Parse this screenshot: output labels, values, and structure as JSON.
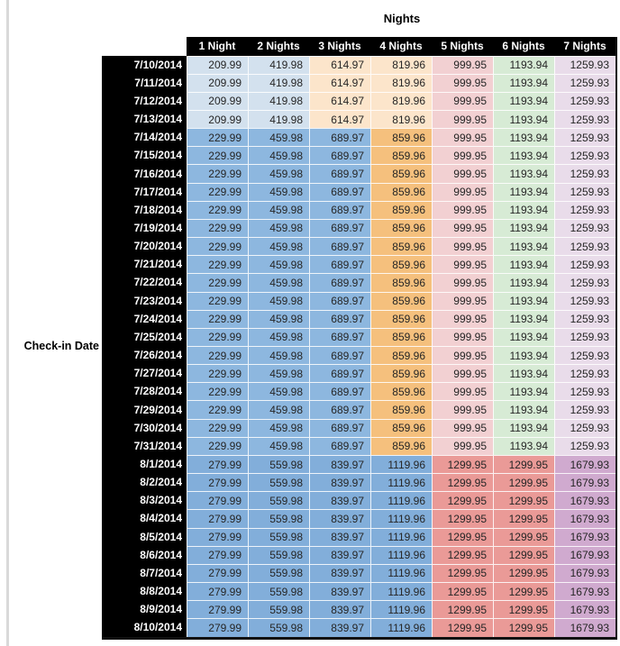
{
  "palette": {
    "low": [
      "#d3e1ee",
      "#d3e1ee",
      "#fce5cb",
      "#fce5cb",
      "#f2d0d2",
      "#d7ebd5",
      "#e9dcea"
    ],
    "mid": [
      "#8db7df",
      "#8db7df",
      "#8db7df",
      "#f5c07d",
      "#f2d0d2",
      "#d7ebd5",
      "#e9dcea"
    ],
    "high": [
      "#82aeda",
      "#82aeda",
      "#82aeda",
      "#82aeda",
      "#ea9a97",
      "#ea9a97",
      "#d0aacf"
    ]
  },
  "styles": {
    "header_bg": "#000000",
    "header_text": "#ffffff",
    "value_text": "#262626",
    "gridline": "#ffffff",
    "side_rule": "#d9d9d9"
  },
  "chart_data": {
    "type": "heatmap",
    "title": "Nights",
    "row_label": "Check-in Date",
    "legend_position": "none",
    "columns": [
      "1 Night",
      "2 Nights",
      "3 Nights",
      "4 Nights",
      "5 Nights",
      "6 Nights",
      "7 Nights"
    ],
    "rows": [
      {
        "date": "7/10/2014",
        "tier": "low",
        "values": [
          "209.99",
          "419.98",
          "614.97",
          "819.96",
          "999.95",
          "1193.94",
          "1259.93"
        ]
      },
      {
        "date": "7/11/2014",
        "tier": "low",
        "values": [
          "209.99",
          "419.98",
          "614.97",
          "819.96",
          "999.95",
          "1193.94",
          "1259.93"
        ]
      },
      {
        "date": "7/12/2014",
        "tier": "low",
        "values": [
          "209.99",
          "419.98",
          "614.97",
          "819.96",
          "999.95",
          "1193.94",
          "1259.93"
        ]
      },
      {
        "date": "7/13/2014",
        "tier": "low",
        "values": [
          "209.99",
          "419.98",
          "614.97",
          "819.96",
          "999.95",
          "1193.94",
          "1259.93"
        ]
      },
      {
        "date": "7/14/2014",
        "tier": "mid",
        "values": [
          "229.99",
          "459.98",
          "689.97",
          "859.96",
          "999.95",
          "1193.94",
          "1259.93"
        ]
      },
      {
        "date": "7/15/2014",
        "tier": "mid",
        "values": [
          "229.99",
          "459.98",
          "689.97",
          "859.96",
          "999.95",
          "1193.94",
          "1259.93"
        ]
      },
      {
        "date": "7/16/2014",
        "tier": "mid",
        "values": [
          "229.99",
          "459.98",
          "689.97",
          "859.96",
          "999.95",
          "1193.94",
          "1259.93"
        ]
      },
      {
        "date": "7/17/2014",
        "tier": "mid",
        "values": [
          "229.99",
          "459.98",
          "689.97",
          "859.96",
          "999.95",
          "1193.94",
          "1259.93"
        ]
      },
      {
        "date": "7/18/2014",
        "tier": "mid",
        "values": [
          "229.99",
          "459.98",
          "689.97",
          "859.96",
          "999.95",
          "1193.94",
          "1259.93"
        ]
      },
      {
        "date": "7/19/2014",
        "tier": "mid",
        "values": [
          "229.99",
          "459.98",
          "689.97",
          "859.96",
          "999.95",
          "1193.94",
          "1259.93"
        ]
      },
      {
        "date": "7/20/2014",
        "tier": "mid",
        "values": [
          "229.99",
          "459.98",
          "689.97",
          "859.96",
          "999.95",
          "1193.94",
          "1259.93"
        ]
      },
      {
        "date": "7/21/2014",
        "tier": "mid",
        "values": [
          "229.99",
          "459.98",
          "689.97",
          "859.96",
          "999.95",
          "1193.94",
          "1259.93"
        ]
      },
      {
        "date": "7/22/2014",
        "tier": "mid",
        "values": [
          "229.99",
          "459.98",
          "689.97",
          "859.96",
          "999.95",
          "1193.94",
          "1259.93"
        ]
      },
      {
        "date": "7/23/2014",
        "tier": "mid",
        "values": [
          "229.99",
          "459.98",
          "689.97",
          "859.96",
          "999.95",
          "1193.94",
          "1259.93"
        ]
      },
      {
        "date": "7/24/2014",
        "tier": "mid",
        "values": [
          "229.99",
          "459.98",
          "689.97",
          "859.96",
          "999.95",
          "1193.94",
          "1259.93"
        ]
      },
      {
        "date": "7/25/2014",
        "tier": "mid",
        "values": [
          "229.99",
          "459.98",
          "689.97",
          "859.96",
          "999.95",
          "1193.94",
          "1259.93"
        ]
      },
      {
        "date": "7/26/2014",
        "tier": "mid",
        "values": [
          "229.99",
          "459.98",
          "689.97",
          "859.96",
          "999.95",
          "1193.94",
          "1259.93"
        ]
      },
      {
        "date": "7/27/2014",
        "tier": "mid",
        "values": [
          "229.99",
          "459.98",
          "689.97",
          "859.96",
          "999.95",
          "1193.94",
          "1259.93"
        ]
      },
      {
        "date": "7/28/2014",
        "tier": "mid",
        "values": [
          "229.99",
          "459.98",
          "689.97",
          "859.96",
          "999.95",
          "1193.94",
          "1259.93"
        ]
      },
      {
        "date": "7/29/2014",
        "tier": "mid",
        "values": [
          "229.99",
          "459.98",
          "689.97",
          "859.96",
          "999.95",
          "1193.94",
          "1259.93"
        ]
      },
      {
        "date": "7/30/2014",
        "tier": "mid",
        "values": [
          "229.99",
          "459.98",
          "689.97",
          "859.96",
          "999.95",
          "1193.94",
          "1259.93"
        ]
      },
      {
        "date": "7/31/2014",
        "tier": "mid",
        "values": [
          "229.99",
          "459.98",
          "689.97",
          "859.96",
          "999.95",
          "1193.94",
          "1259.93"
        ]
      },
      {
        "date": "8/1/2014",
        "tier": "high",
        "values": [
          "279.99",
          "559.98",
          "839.97",
          "1119.96",
          "1299.95",
          "1299.95",
          "1679.93"
        ]
      },
      {
        "date": "8/2/2014",
        "tier": "high",
        "values": [
          "279.99",
          "559.98",
          "839.97",
          "1119.96",
          "1299.95",
          "1299.95",
          "1679.93"
        ]
      },
      {
        "date": "8/3/2014",
        "tier": "high",
        "values": [
          "279.99",
          "559.98",
          "839.97",
          "1119.96",
          "1299.95",
          "1299.95",
          "1679.93"
        ]
      },
      {
        "date": "8/4/2014",
        "tier": "high",
        "values": [
          "279.99",
          "559.98",
          "839.97",
          "1119.96",
          "1299.95",
          "1299.95",
          "1679.93"
        ]
      },
      {
        "date": "8/5/2014",
        "tier": "high",
        "values": [
          "279.99",
          "559.98",
          "839.97",
          "1119.96",
          "1299.95",
          "1299.95",
          "1679.93"
        ]
      },
      {
        "date": "8/6/2014",
        "tier": "high",
        "values": [
          "279.99",
          "559.98",
          "839.97",
          "1119.96",
          "1299.95",
          "1299.95",
          "1679.93"
        ]
      },
      {
        "date": "8/7/2014",
        "tier": "high",
        "values": [
          "279.99",
          "559.98",
          "839.97",
          "1119.96",
          "1299.95",
          "1299.95",
          "1679.93"
        ]
      },
      {
        "date": "8/8/2014",
        "tier": "high",
        "values": [
          "279.99",
          "559.98",
          "839.97",
          "1119.96",
          "1299.95",
          "1299.95",
          "1679.93"
        ]
      },
      {
        "date": "8/9/2014",
        "tier": "high",
        "values": [
          "279.99",
          "559.98",
          "839.97",
          "1119.96",
          "1299.95",
          "1299.95",
          "1679.93"
        ]
      },
      {
        "date": "8/10/2014",
        "tier": "high",
        "values": [
          "279.99",
          "559.98",
          "839.97",
          "1119.96",
          "1299.95",
          "1299.95",
          "1679.93"
        ]
      }
    ]
  }
}
